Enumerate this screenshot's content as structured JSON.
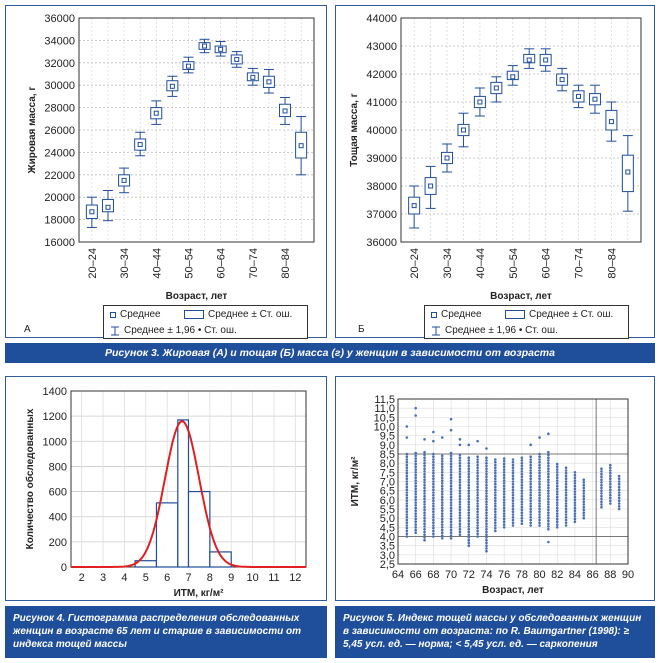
{
  "figure3": {
    "caption": "Рисунок 3.  Жировая (А) и тощая (Б) масса (г) у женщин в зависимости от возраста",
    "legend": {
      "mean": "Среднее",
      "mean_se": "Среднее ± Ст. ош.",
      "mean_ci": "Среднее ± 1,96 • Ст. ош."
    }
  },
  "figure4": {
    "caption": "Рисунок 4.  Гистограмма распределения обследованных женщин в возрасте 65 лет и старше в зависимости от индекса тощей массы"
  },
  "figure5": {
    "caption": "Рисунок 5.  Индекс тощей массы у обследованных женщин в зависимости от возраста: по R. Baumgartner (1998): ≥ 5,45 усл. ед. — норма; < 5,45 усл. ед. — саркопения"
  },
  "colors": {
    "accent": "#1f4e9b",
    "curve": "#e02020",
    "box": "#1f4e9b"
  },
  "chart_data": [
    {
      "type": "box",
      "panel": "А",
      "ylabel": "Жировая масса, г",
      "xlabel": "Возраст, лет",
      "ylim": [
        16000,
        36000
      ],
      "yticks": [
        16000,
        18000,
        20000,
        22000,
        24000,
        26000,
        28000,
        30000,
        32000,
        34000,
        36000
      ],
      "categories": [
        "20–24",
        "",
        "30–34",
        "",
        "40–44",
        "",
        "50–54",
        "",
        "60–64",
        "",
        "70–74",
        "",
        "80–84",
        ""
      ],
      "series": [
        {
          "mean": 18700,
          "se_low": 18100,
          "se_high": 19300,
          "ci_low": 17300,
          "ci_high": 20000
        },
        {
          "mean": 19100,
          "se_low": 18700,
          "se_high": 19800,
          "ci_low": 17900,
          "ci_high": 20600
        },
        {
          "mean": 21500,
          "se_low": 21000,
          "se_high": 22000,
          "ci_low": 20400,
          "ci_high": 22600
        },
        {
          "mean": 24700,
          "se_low": 24200,
          "se_high": 25200,
          "ci_low": 23700,
          "ci_high": 25800
        },
        {
          "mean": 27500,
          "se_low": 27000,
          "se_high": 28000,
          "ci_low": 26500,
          "ci_high": 28600
        },
        {
          "mean": 29900,
          "se_low": 29500,
          "se_high": 30400,
          "ci_low": 29000,
          "ci_high": 30800
        },
        {
          "mean": 31700,
          "se_low": 31400,
          "se_high": 32100,
          "ci_low": 31100,
          "ci_high": 32500
        },
        {
          "mean": 33500,
          "se_low": 33200,
          "se_high": 33800,
          "ci_low": 32900,
          "ci_high": 34100
        },
        {
          "mean": 33200,
          "se_low": 32900,
          "se_high": 33500,
          "ci_low": 32600,
          "ci_high": 33900
        },
        {
          "mean": 32300,
          "se_low": 31900,
          "se_high": 32700,
          "ci_low": 31600,
          "ci_high": 33000
        },
        {
          "mean": 30700,
          "se_low": 30400,
          "se_high": 31100,
          "ci_low": 30000,
          "ci_high": 31500
        },
        {
          "mean": 30300,
          "se_low": 29800,
          "se_high": 30800,
          "ci_low": 29300,
          "ci_high": 31400
        },
        {
          "mean": 27700,
          "se_low": 27200,
          "se_high": 28300,
          "ci_low": 26500,
          "ci_high": 28900
        },
        {
          "mean": 24600,
          "se_low": 23500,
          "se_high": 25800,
          "ci_low": 22000,
          "ci_high": 27200
        }
      ]
    },
    {
      "type": "box",
      "panel": "Б",
      "ylabel": "Тощая масса, г",
      "xlabel": "Возраст, лет",
      "ylim": [
        36000,
        44000
      ],
      "yticks": [
        36000,
        37000,
        38000,
        39000,
        40000,
        41000,
        42000,
        43000,
        44000
      ],
      "categories": [
        "20–24",
        "",
        "30–34",
        "",
        "40–44",
        "",
        "50–54",
        "",
        "60–64",
        "",
        "70–74",
        "",
        "80–84",
        ""
      ],
      "series": [
        {
          "mean": 37300,
          "se_low": 37000,
          "se_high": 37600,
          "ci_low": 36500,
          "ci_high": 38000
        },
        {
          "mean": 38000,
          "se_low": 37700,
          "se_high": 38300,
          "ci_low": 37200,
          "ci_high": 38700
        },
        {
          "mean": 39000,
          "se_low": 38800,
          "se_high": 39200,
          "ci_low": 38500,
          "ci_high": 39500
        },
        {
          "mean": 40000,
          "se_low": 39800,
          "se_high": 40200,
          "ci_low": 39400,
          "ci_high": 40600
        },
        {
          "mean": 41000,
          "se_low": 40800,
          "se_high": 41200,
          "ci_low": 40500,
          "ci_high": 41500
        },
        {
          "mean": 41500,
          "se_low": 41300,
          "se_high": 41700,
          "ci_low": 41000,
          "ci_high": 41900
        },
        {
          "mean": 41900,
          "se_low": 41800,
          "se_high": 42100,
          "ci_low": 41600,
          "ci_high": 42300
        },
        {
          "mean": 42500,
          "se_low": 42400,
          "se_high": 42700,
          "ci_low": 42200,
          "ci_high": 42900
        },
        {
          "mean": 42500,
          "se_low": 42300,
          "se_high": 42700,
          "ci_low": 42100,
          "ci_high": 42900
        },
        {
          "mean": 41800,
          "se_low": 41600,
          "se_high": 42000,
          "ci_low": 41400,
          "ci_high": 42200
        },
        {
          "mean": 41200,
          "se_low": 41000,
          "se_high": 41400,
          "ci_low": 40800,
          "ci_high": 41600
        },
        {
          "mean": 41100,
          "se_low": 40900,
          "se_high": 41300,
          "ci_low": 40600,
          "ci_high": 41600
        },
        {
          "mean": 40300,
          "se_low": 40000,
          "se_high": 40700,
          "ci_low": 39600,
          "ci_high": 41000
        },
        {
          "mean": 38500,
          "se_low": 37800,
          "se_high": 39100,
          "ci_low": 37100,
          "ci_high": 39800
        }
      ]
    },
    {
      "type": "bar",
      "ylabel": "Количество обследованных",
      "xlabel": "ИТМ, кг/м²",
      "xlim": [
        1.5,
        12.5
      ],
      "ylim": [
        0,
        1400
      ],
      "xticks": [
        2,
        3,
        4,
        5,
        6,
        7,
        8,
        9,
        10,
        11,
        12
      ],
      "yticks": [
        0,
        200,
        400,
        600,
        800,
        1000,
        1200,
        1400
      ],
      "bins": [
        {
          "from": 4.5,
          "to": 5.5,
          "value": 50
        },
        {
          "from": 5.5,
          "to": 6.5,
          "value": 510
        },
        {
          "from": 6.5,
          "to": 7.0,
          "value": 1170
        },
        {
          "from": 7.0,
          "to": 8.0,
          "value": 600
        },
        {
          "from": 8.0,
          "to": 9.0,
          "value": 120
        }
      ],
      "curve": {
        "mean": 6.7,
        "sd": 0.8,
        "peak": 1160
      }
    },
    {
      "type": "scatter",
      "ylabel": "ИТМ, кг/м²",
      "xlabel": "Возраст, лет",
      "xlim": [
        64,
        90
      ],
      "ylim": [
        2.5,
        11.5
      ],
      "xticks": [
        64,
        66,
        68,
        70,
        72,
        74,
        76,
        78,
        80,
        82,
        84,
        86,
        88,
        90
      ],
      "yticks": [
        2.5,
        3.0,
        3.5,
        4.0,
        4.5,
        5.0,
        5.5,
        6.0,
        6.5,
        7.0,
        7.5,
        8.0,
        8.5,
        9.0,
        9.5,
        10.0,
        10.5,
        11.0,
        11.5
      ],
      "ytick_labels": [
        "2,5",
        "3,0",
        "3,5",
        "4,0",
        "4,5",
        "5,0",
        "5,5",
        "6,0",
        "6,5",
        "7,0",
        "7,5",
        "8,0",
        "8,5",
        "9,0",
        "9,5",
        "10,0",
        "10,5",
        "11,0",
        "11,5"
      ],
      "columns": [
        {
          "x": 65,
          "min": 4.0,
          "max": 8.5,
          "extra": [
            9.4,
            10.0
          ]
        },
        {
          "x": 66,
          "min": 4.2,
          "max": 8.6,
          "extra": [
            10.6,
            11.0
          ]
        },
        {
          "x": 67,
          "min": 3.8,
          "max": 8.6,
          "extra": [
            9.3
          ]
        },
        {
          "x": 68,
          "min": 4.0,
          "max": 8.6,
          "extra": [
            9.2,
            9.7
          ]
        },
        {
          "x": 69,
          "min": 3.9,
          "max": 8.5,
          "extra": [
            9.4
          ]
        },
        {
          "x": 70,
          "min": 3.9,
          "max": 8.6,
          "extra": [
            9.8,
            10.4
          ]
        },
        {
          "x": 71,
          "min": 4.1,
          "max": 8.5,
          "extra": [
            9.0,
            9.3
          ]
        },
        {
          "x": 72,
          "min": 3.5,
          "max": 8.4,
          "extra": [
            9.0
          ]
        },
        {
          "x": 73,
          "min": 4.0,
          "max": 8.4,
          "extra": [
            9.2
          ]
        },
        {
          "x": 74,
          "min": 3.2,
          "max": 8.4,
          "extra": [
            8.8
          ]
        },
        {
          "x": 75,
          "min": 4.3,
          "max": 8.3,
          "extra": []
        },
        {
          "x": 76,
          "min": 4.5,
          "max": 8.3,
          "extra": []
        },
        {
          "x": 77,
          "min": 4.6,
          "max": 8.2,
          "extra": []
        },
        {
          "x": 78,
          "min": 4.7,
          "max": 8.3,
          "extra": []
        },
        {
          "x": 79,
          "min": 4.6,
          "max": 8.4,
          "extra": [
            9.0
          ]
        },
        {
          "x": 80,
          "min": 4.6,
          "max": 8.5,
          "extra": [
            9.4
          ]
        },
        {
          "x": 81,
          "min": 4.4,
          "max": 8.6,
          "extra": [
            3.7,
            9.6
          ]
        },
        {
          "x": 82,
          "min": 4.5,
          "max": 8.0,
          "extra": []
        },
        {
          "x": 83,
          "min": 4.6,
          "max": 7.8,
          "extra": []
        },
        {
          "x": 84,
          "min": 4.8,
          "max": 7.5,
          "extra": []
        },
        {
          "x": 85,
          "min": 5.0,
          "max": 7.2,
          "extra": []
        },
        {
          "x": 87,
          "min": 5.6,
          "max": 7.8,
          "extra": []
        },
        {
          "x": 88,
          "min": 5.8,
          "max": 7.9,
          "extra": []
        },
        {
          "x": 89,
          "min": 5.5,
          "max": 7.3,
          "extra": []
        }
      ]
    }
  ]
}
